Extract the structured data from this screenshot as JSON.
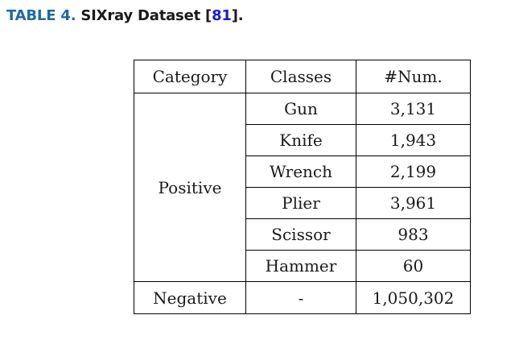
{
  "caption": {
    "label": "TABLE 4.",
    "title": "SIXray Dataset [",
    "ref": "81",
    "close": "]."
  },
  "table": {
    "headers": [
      "Category",
      "Classes",
      "#Num."
    ],
    "positive": {
      "category": "Positive",
      "rows": [
        {
          "class": "Gun",
          "num": "3,131"
        },
        {
          "class": "Knife",
          "num": "1,943"
        },
        {
          "class": "Wrench",
          "num": "2,199"
        },
        {
          "class": "Plier",
          "num": "3,961"
        },
        {
          "class": "Scissor",
          "num": "983"
        },
        {
          "class": "Hammer",
          "num": "60"
        }
      ]
    },
    "negative": {
      "category": "Negative",
      "class": "-",
      "num": "1,050,302"
    }
  }
}
